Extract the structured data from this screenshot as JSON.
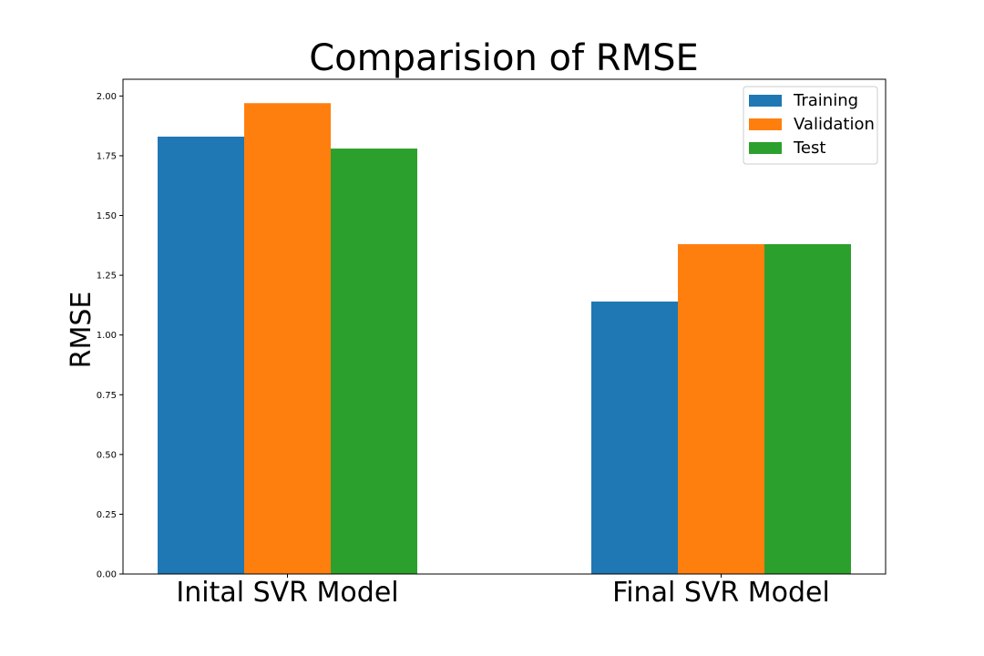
{
  "chart_data": {
    "type": "bar",
    "title": "Comparision of RMSE",
    "xlabel": "",
    "ylabel": "RMSE",
    "categories": [
      "Inital SVR Model",
      "Final SVR Model"
    ],
    "series": [
      {
        "name": "Training",
        "color": "#1f77b4",
        "values": [
          1.83,
          1.14
        ]
      },
      {
        "name": "Validation",
        "color": "#ff7f0e",
        "values": [
          1.97,
          1.38
        ]
      },
      {
        "name": "Test",
        "color": "#2ca02c",
        "values": [
          1.78,
          1.38
        ]
      }
    ],
    "ylim": [
      0,
      2.07
    ],
    "yticks": [
      "0.00",
      "0.25",
      "0.50",
      "0.75",
      "1.00",
      "1.25",
      "1.50",
      "1.75",
      "2.00"
    ],
    "legend_position": "top-right",
    "grid": false
  }
}
